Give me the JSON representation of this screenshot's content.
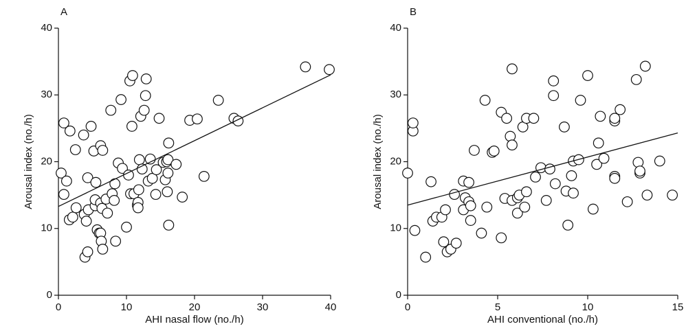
{
  "chart_data": [
    {
      "type": "scatter",
      "panel_label": "A",
      "x_label": "AHI nasal flow (no./h)",
      "y_label": "Arousal index (no./h)",
      "xlim": [
        0,
        40
      ],
      "ylim": [
        0,
        40
      ],
      "xticks": [
        0,
        10,
        20,
        30,
        40
      ],
      "yticks": [
        0,
        10,
        20,
        30,
        40
      ],
      "marker_fill": "#ffffff",
      "marker_stroke": "#111111",
      "x": [
        0.4,
        0.8,
        0.8,
        1.2,
        1.6,
        1.7,
        2.1,
        2.5,
        2.6,
        3.7,
        3.8,
        3.9,
        4.1,
        4.3,
        4.3,
        4.4,
        4.8,
        5.2,
        5.4,
        5.4,
        5.5,
        5.7,
        6.0,
        6.2,
        6.2,
        6.2,
        6.3,
        6.4,
        6.5,
        6.5,
        7.0,
        7.2,
        7.7,
        7.9,
        8.2,
        8.3,
        8.4,
        8.8,
        9.2,
        9.4,
        10.0,
        10.3,
        10.5,
        10.6,
        10.8,
        10.9,
        11.1,
        11.6,
        11.7,
        11.7,
        11.8,
        11.9,
        12.1,
        12.3,
        12.6,
        12.8,
        12.9,
        13.2,
        13.5,
        13.8,
        14.3,
        14.4,
        14.8,
        15.4,
        15.7,
        15.9,
        16.0,
        16.1,
        16.1,
        16.2,
        16.2,
        17.3,
        18.2,
        19.3,
        20.4,
        21.4,
        23.5,
        25.8,
        26.4,
        36.3,
        39.8
      ],
      "values": [
        18.3,
        25.8,
        15.1,
        17.1,
        11.3,
        24.6,
        11.7,
        21.8,
        13.1,
        24.0,
        12.1,
        5.7,
        11.1,
        6.5,
        17.6,
        12.8,
        25.3,
        21.6,
        13.4,
        14.3,
        16.9,
        9.8,
        9.3,
        13.8,
        22.4,
        9.3,
        8.1,
        13.0,
        21.7,
        6.9,
        14.4,
        12.3,
        27.7,
        15.2,
        14.2,
        16.7,
        8.1,
        19.8,
        29.3,
        19.0,
        10.2,
        18.0,
        32.1,
        15.2,
        25.3,
        32.9,
        15.2,
        13.5,
        13.9,
        13.1,
        15.8,
        20.3,
        26.8,
        18.9,
        27.7,
        29.9,
        32.4,
        17.1,
        20.4,
        17.5,
        15.1,
        18.8,
        26.5,
        19.9,
        17.3,
        20.0,
        15.5,
        18.3,
        20.3,
        10.5,
        22.8,
        19.6,
        14.7,
        26.2,
        26.4,
        17.8,
        29.2,
        26.5,
        26.1,
        34.2,
        33.8
      ],
      "fit": {
        "x": [
          0,
          40
        ],
        "values": [
          13.3,
          33.0
        ]
      }
    },
    {
      "type": "scatter",
      "panel_label": "B",
      "x_label": "AHI conventional (no./h)",
      "y_label": "Arousal index (no./h)",
      "xlim": [
        0,
        15
      ],
      "ylim": [
        0,
        40
      ],
      "xticks": [
        0,
        5,
        10,
        15
      ],
      "yticks": [
        0,
        10,
        20,
        30,
        40
      ],
      "marker_fill": "#ffffff",
      "marker_stroke": "#111111",
      "x": [
        0,
        0.3,
        0.3,
        0.4,
        1.0,
        1.3,
        1.4,
        1.6,
        1.9,
        2.0,
        2.1,
        2.2,
        2.4,
        2.6,
        2.7,
        3.1,
        3.1,
        3.2,
        3.4,
        3.4,
        3.5,
        3.5,
        3.7,
        4.1,
        4.3,
        4.4,
        4.7,
        4.8,
        5.2,
        5.2,
        5.4,
        5.5,
        5.7,
        5.8,
        5.8,
        5.8,
        6.1,
        6.1,
        6.2,
        6.4,
        6.5,
        6.6,
        6.6,
        7.0,
        7.1,
        7.4,
        7.7,
        7.9,
        8.1,
        8.1,
        8.2,
        8.7,
        8.8,
        8.9,
        9.1,
        9.2,
        9.2,
        9.5,
        9.6,
        10.0,
        10.3,
        10.5,
        10.6,
        10.7,
        10.9,
        11.5,
        11.5,
        11.5,
        11.5,
        11.8,
        12.2,
        12.7,
        12.8,
        12.9,
        12.9,
        13.2,
        13.3,
        14.0,
        14.7
      ],
      "values": [
        18.3,
        24.6,
        25.8,
        9.7,
        5.7,
        17.0,
        11.1,
        11.7,
        11.7,
        8.0,
        12.8,
        6.5,
        6.9,
        15.1,
        7.8,
        12.8,
        17.1,
        14.6,
        16.9,
        14.0,
        11.2,
        13.4,
        21.7,
        9.3,
        29.2,
        13.2,
        21.4,
        21.6,
        27.4,
        8.6,
        14.5,
        26.5,
        23.8,
        22.5,
        14.2,
        33.9,
        14.6,
        12.3,
        15.0,
        25.2,
        13.2,
        15.5,
        26.5,
        26.5,
        17.7,
        19.1,
        14.2,
        18.9,
        29.9,
        32.1,
        16.7,
        25.2,
        15.6,
        10.5,
        17.9,
        20.1,
        15.3,
        20.3,
        29.2,
        32.9,
        12.9,
        19.6,
        22.8,
        26.8,
        20.5,
        26.1,
        26.5,
        17.8,
        17.5,
        27.8,
        14.0,
        32.3,
        19.9,
        18.3,
        18.6,
        34.3,
        15.0,
        20.1,
        15.0
      ],
      "fit": {
        "x": [
          0,
          15
        ],
        "values": [
          13.5,
          24.3
        ]
      }
    }
  ]
}
